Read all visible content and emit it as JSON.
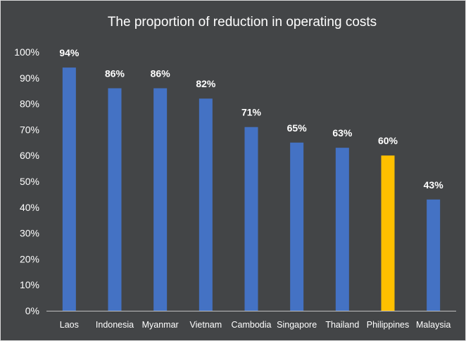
{
  "chart_data": {
    "type": "bar",
    "title": "The proportion of reduction in operating costs",
    "xlabel": "",
    "ylabel": "",
    "ylim": [
      0,
      100
    ],
    "yticks": [
      0,
      10,
      20,
      30,
      40,
      50,
      60,
      70,
      80,
      90,
      100
    ],
    "ytick_labels": [
      "0%",
      "10%",
      "20%",
      "30%",
      "40%",
      "50%",
      "60%",
      "70%",
      "80%",
      "90%",
      "100%"
    ],
    "categories": [
      "Laos",
      "Indonesia",
      "Myanmar",
      "Vietnam",
      "Cambodia",
      "Singapore",
      "Thailand",
      "Philippines",
      "Malaysia"
    ],
    "values": [
      94,
      86,
      86,
      82,
      71,
      65,
      63,
      60,
      43
    ],
    "value_labels": [
      "94%",
      "86%",
      "86%",
      "82%",
      "71%",
      "65%",
      "63%",
      "60%",
      "43%"
    ],
    "bar_colors": [
      "#4472C4",
      "#4472C4",
      "#4472C4",
      "#4472C4",
      "#4472C4",
      "#4472C4",
      "#4472C4",
      "#FFC000",
      "#4472C4"
    ],
    "grid": false,
    "legend": "none"
  },
  "colors": {
    "background": "#434547",
    "text": "#ffffff",
    "axis": "#bfbfbf",
    "bar_default": "#4472C4",
    "bar_highlight": "#FFC000"
  }
}
